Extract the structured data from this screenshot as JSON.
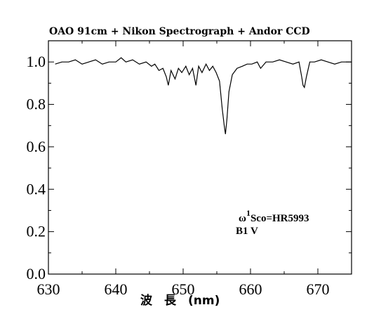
{
  "chart_data": {
    "type": "line",
    "title": "OAO 91cm + Nikon Spectrograph + Andor CCD",
    "xlabel": "波　長　(nm)",
    "ylabel": "",
    "xlim": [
      630,
      675
    ],
    "ylim": [
      0.0,
      1.1
    ],
    "x_ticks": [
      "630",
      "640",
      "650",
      "660",
      "670"
    ],
    "y_ticks": [
      "0.0",
      "0.2",
      "0.4",
      "0.6",
      "0.8",
      "1.0"
    ],
    "grid": false,
    "annotation": {
      "star": "Sco=HR5993",
      "prefix": "ω",
      "superscript": "1",
      "spectral_type": "B1 V"
    },
    "series": [
      {
        "x": [
          631.0,
          632.0,
          633.0,
          634.0,
          635.0,
          636.0,
          637.0,
          638.0,
          639.0,
          640.0,
          640.8,
          641.5,
          642.5,
          643.5,
          644.5,
          645.3,
          645.8,
          646.4,
          647.0,
          647.5,
          647.8,
          648.2,
          648.8,
          649.3,
          649.8,
          650.4,
          650.9,
          651.4,
          651.9,
          652.3,
          652.8,
          653.4,
          653.9,
          654.4,
          654.9,
          655.4,
          655.8,
          656.1,
          656.28,
          656.5,
          656.8,
          657.3,
          658.0,
          658.8,
          659.5,
          660.2,
          661.0,
          661.5,
          662.3,
          663.3,
          664.3,
          665.3,
          666.3,
          667.2,
          667.6,
          667.8,
          668.0,
          668.3,
          668.8,
          669.5,
          670.5,
          671.5,
          672.5,
          673.5,
          674.5,
          675.0
        ],
        "y": [
          0.99,
          1.0,
          1.0,
          1.01,
          0.99,
          1.0,
          1.01,
          0.99,
          1.0,
          1.0,
          1.02,
          1.0,
          1.01,
          0.99,
          1.0,
          0.98,
          0.99,
          0.96,
          0.97,
          0.93,
          0.89,
          0.96,
          0.92,
          0.97,
          0.95,
          0.98,
          0.94,
          0.97,
          0.89,
          0.98,
          0.95,
          0.99,
          0.96,
          0.98,
          0.95,
          0.91,
          0.78,
          0.7,
          0.66,
          0.73,
          0.86,
          0.94,
          0.97,
          0.98,
          0.99,
          0.99,
          1.0,
          0.97,
          1.0,
          1.0,
          1.01,
          1.0,
          0.99,
          1.0,
          0.93,
          0.89,
          0.88,
          0.93,
          1.0,
          1.0,
          1.01,
          1.0,
          0.99,
          1.0,
          1.0,
          1.0
        ]
      }
    ]
  }
}
